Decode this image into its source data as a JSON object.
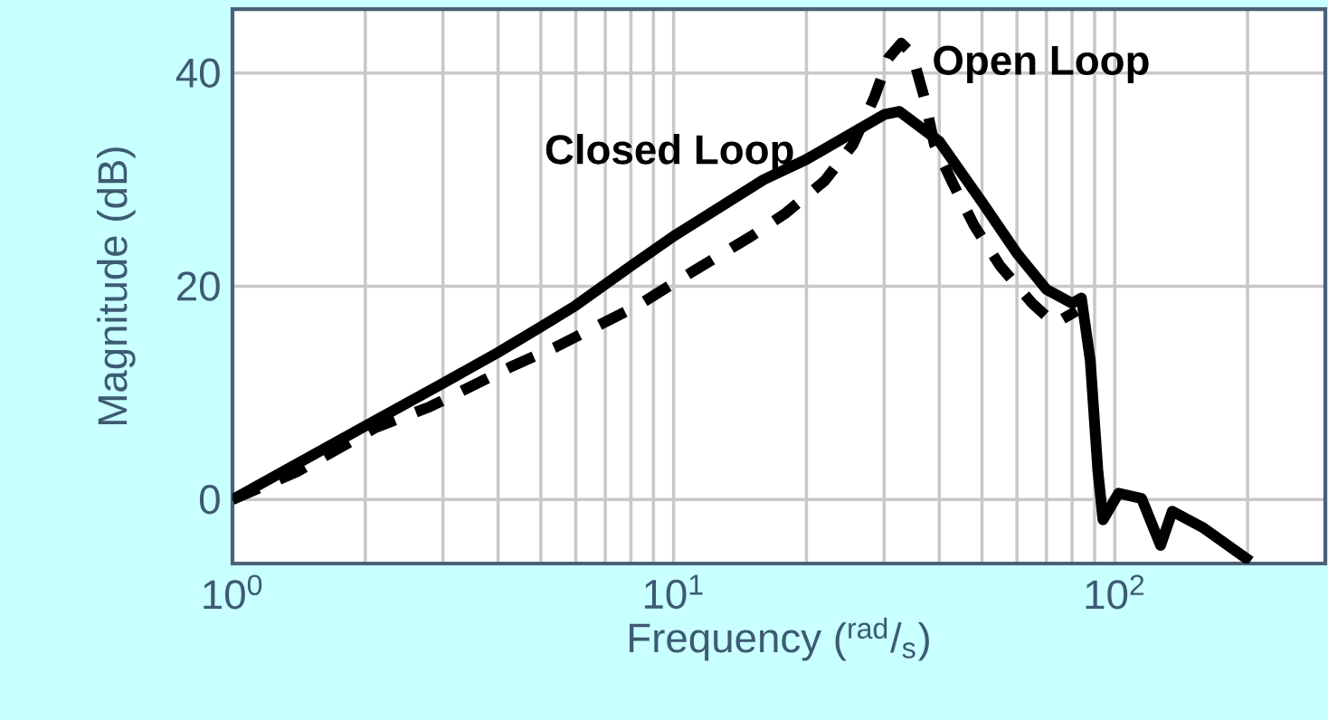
{
  "chart_data": {
    "type": "line",
    "xlabel": "Frequency ($^{rad}$/$_{s}$)",
    "ylabel": "Magnitude (dB)",
    "log": "x",
    "grid": true,
    "xlim": [
      1,
      300
    ],
    "ylim": [
      -6,
      46
    ],
    "xticks": [
      {
        "value": 1,
        "label": "10$^{0}$"
      },
      {
        "value": 10,
        "label": "10$^{1}$"
      },
      {
        "value": 100,
        "label": "10$^{2}$"
      }
    ],
    "yticks": [
      0,
      20,
      40
    ],
    "series": [
      {
        "name": "Closed Loop",
        "color": "#000000",
        "line_style": "solid",
        "x": [
          1,
          2,
          3,
          4,
          5,
          6,
          8,
          10,
          16,
          20,
          30,
          32.5,
          40,
          50,
          60,
          70,
          80,
          84,
          88,
          91.5,
          94,
          102,
          115,
          127,
          135,
          158,
          203
        ],
        "values": [
          0,
          6.9,
          10.9,
          13.8,
          16.2,
          18.2,
          21.9,
          24.7,
          30,
          31.9,
          36.1,
          36.4,
          33.6,
          27.9,
          23.1,
          19.7,
          18.4,
          18.9,
          13,
          2.8,
          -1.9,
          0.6,
          0.1,
          -4.3,
          -1.1,
          -2.6,
          -5.8
        ]
      },
      {
        "name": "Open Loop",
        "color": "#000000",
        "line_style": "dashed",
        "x": [
          1,
          1.4,
          2.1,
          2.8,
          4.3,
          5.4,
          8.3,
          10,
          15,
          18,
          22,
          25.5,
          28.5,
          30.7,
          32.8,
          34.7,
          37,
          39,
          43,
          48,
          55,
          65,
          73,
          82
        ],
        "values": [
          0,
          2.6,
          6.7,
          8.7,
          12.5,
          14.3,
          18.2,
          20.3,
          24.7,
          26.9,
          29.9,
          33.3,
          37.7,
          41.4,
          42.8,
          41.8,
          37.7,
          33.3,
          29.6,
          25.7,
          21.9,
          18.4,
          16.5,
          17.7
        ]
      }
    ]
  }
}
